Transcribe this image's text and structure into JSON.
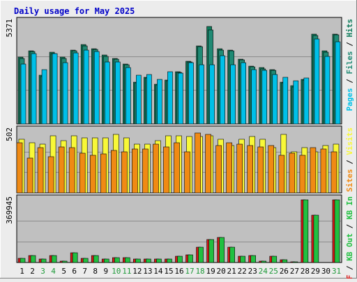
{
  "title": "Daily usage for May 2025",
  "colors": {
    "background": "#ececec",
    "panel": "#c0c0c0",
    "title": "#0000c8",
    "pages": "#00c0e8",
    "files": "#1f8a74",
    "hits": "#0e7b5b",
    "visits": "#f8f838",
    "sites": "#f08a14",
    "kb_in": "#20c040",
    "kb_out": "#20c040",
    "kb_f": "#d81818",
    "weekend_label": "#1f9a3a"
  },
  "chart_data": [
    {
      "type": "bar",
      "name": "hits-files-pages",
      "ymax_label": "5371",
      "ylim": [
        0,
        5371
      ],
      "legend": [
        "Pages",
        "Files",
        "Hits"
      ],
      "legend_separator": " / ",
      "categories": [
        "1",
        "2",
        "3",
        "4",
        "5",
        "6",
        "7",
        "8",
        "9",
        "10",
        "11",
        "12",
        "13",
        "14",
        "15",
        "16",
        "17",
        "18",
        "19",
        "20",
        "21",
        "22",
        "23",
        "24",
        "25",
        "26",
        "27",
        "28",
        "29",
        "30",
        "31"
      ],
      "series": [
        {
          "name": "Hits",
          "values": [
            3500,
            3850,
            2550,
            3750,
            3500,
            3880,
            4150,
            3950,
            3600,
            3450,
            3150,
            2200,
            2450,
            2100,
            2300,
            2750,
            3300,
            4080,
            5130,
            3930,
            3890,
            3400,
            3050,
            2950,
            2860,
            2210,
            2000,
            2350,
            4700,
            3830,
            4720
          ]
        },
        {
          "name": "Files",
          "values": [
            3450,
            3800,
            2500,
            3700,
            3450,
            3850,
            4100,
            3900,
            3550,
            3400,
            3100,
            2150,
            2400,
            2050,
            2250,
            2700,
            3250,
            4050,
            4930,
            3880,
            3850,
            3350,
            3000,
            2900,
            2800,
            2160,
            1950,
            2300,
            4650,
            3780,
            4670
          ]
        },
        {
          "name": "Pages",
          "values": [
            3150,
            3700,
            2850,
            3700,
            3200,
            3720,
            3870,
            3800,
            3270,
            3260,
            2960,
            2540,
            2590,
            2350,
            2740,
            2670,
            3210,
            3100,
            3120,
            3570,
            3110,
            3200,
            2840,
            2800,
            2590,
            2460,
            2270,
            2420,
            4450,
            3540,
            4300
          ]
        }
      ]
    },
    {
      "type": "bar",
      "name": "visits-sites",
      "ymax_label": "502",
      "ylim": [
        0,
        502
      ],
      "legend": [
        "Sites",
        "Visits"
      ],
      "legend_separator": " / ",
      "categories": [
        "1",
        "2",
        "3",
        "4",
        "5",
        "6",
        "7",
        "8",
        "9",
        "10",
        "11",
        "12",
        "13",
        "14",
        "15",
        "16",
        "17",
        "18",
        "19",
        "20",
        "21",
        "22",
        "23",
        "24",
        "25",
        "26",
        "27",
        "28",
        "29",
        "30",
        "31"
      ],
      "series": [
        {
          "name": "Visits",
          "values": [
            430,
            400,
            390,
            460,
            420,
            460,
            440,
            440,
            440,
            470,
            440,
            390,
            390,
            420,
            460,
            460,
            450,
            450,
            460,
            430,
            380,
            430,
            450,
            430,
            360,
            470,
            330,
            360,
            330,
            380,
            390
          ]
        },
        {
          "name": "Sites",
          "values": [
            400,
            280,
            360,
            290,
            370,
            360,
            320,
            300,
            310,
            340,
            330,
            350,
            350,
            390,
            370,
            400,
            330,
            480,
            470,
            380,
            400,
            390,
            380,
            370,
            380,
            300,
            320,
            300,
            360,
            350,
            330
          ]
        }
      ]
    },
    {
      "type": "bar",
      "name": "kbytes",
      "ymax_label": "369945",
      "ylim": [
        0,
        369945
      ],
      "legend": [
        "KB F",
        "KB Out",
        "KB In"
      ],
      "legend_separator": " / ",
      "categories": [
        "1",
        "2",
        "3",
        "4",
        "5",
        "6",
        "7",
        "8",
        "9",
        "10",
        "11",
        "12",
        "13",
        "14",
        "15",
        "16",
        "17",
        "18",
        "19",
        "20",
        "21",
        "22",
        "23",
        "24",
        "25",
        "26",
        "27",
        "28",
        "29",
        "30",
        "31"
      ],
      "weekend_days": [
        "3",
        "4",
        "10",
        "11",
        "17",
        "18",
        "24",
        "25",
        "31"
      ],
      "series": [
        {
          "name": "KB F",
          "values": [
            25000,
            40000,
            20000,
            40000,
            10000,
            55000,
            25000,
            40000,
            20000,
            30000,
            30000,
            20000,
            20000,
            20000,
            20000,
            35000,
            45000,
            90000,
            135000,
            145000,
            90000,
            35000,
            40000,
            10000,
            35000,
            15000,
            5000,
            365000,
            275000,
            0,
            365000
          ]
        },
        {
          "name": "KB In",
          "values": [
            25000,
            40000,
            20000,
            40000,
            10000,
            55000,
            25000,
            40000,
            20000,
            30000,
            30000,
            20000,
            20000,
            20000,
            20000,
            35000,
            45000,
            90000,
            135000,
            145000,
            90000,
            35000,
            40000,
            10000,
            35000,
            15000,
            5000,
            365000,
            275000,
            0,
            365000
          ]
        }
      ]
    }
  ]
}
